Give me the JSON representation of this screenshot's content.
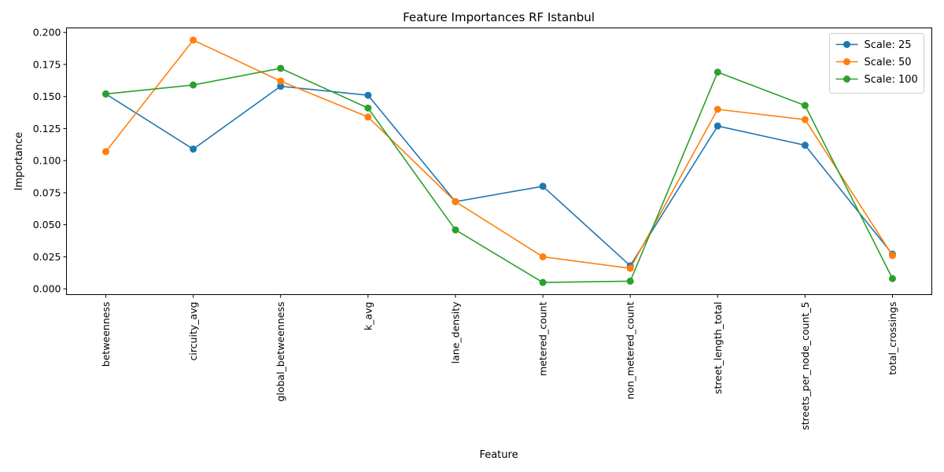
{
  "chart_data": {
    "type": "line",
    "title": "Feature Importances RF Istanbul",
    "xlabel": "Feature",
    "ylabel": "Importance",
    "categories": [
      "betweenness",
      "circuity_avg",
      "global_betweenness",
      "k_avg",
      "lane_density",
      "metered_count",
      "non_metered_count",
      "street_length_total",
      "streets_per_node_count_5",
      "total_crossings"
    ],
    "ylim": [
      -0.0045,
      0.2035
    ],
    "yticks": [
      0.0,
      0.025,
      0.05,
      0.075,
      0.1,
      0.125,
      0.15,
      0.175,
      0.2
    ],
    "ytick_labels": [
      "0.000",
      "0.025",
      "0.050",
      "0.075",
      "0.100",
      "0.125",
      "0.150",
      "0.175",
      "0.200"
    ],
    "grid": false,
    "legend_position": "top-right",
    "series": [
      {
        "name": "Scale: 25",
        "color": "#1f77b4",
        "values": [
          0.152,
          0.109,
          0.158,
          0.151,
          0.068,
          0.08,
          0.018,
          0.127,
          0.112,
          0.027
        ]
      },
      {
        "name": "Scale: 50",
        "color": "#ff7f0e",
        "values": [
          0.107,
          0.194,
          0.162,
          0.134,
          0.068,
          0.025,
          0.016,
          0.14,
          0.132,
          0.026
        ]
      },
      {
        "name": "Scale: 100",
        "color": "#2ca02c",
        "values": [
          0.152,
          0.159,
          0.172,
          0.141,
          0.046,
          0.005,
          0.006,
          0.169,
          0.143,
          0.008
        ]
      }
    ]
  }
}
